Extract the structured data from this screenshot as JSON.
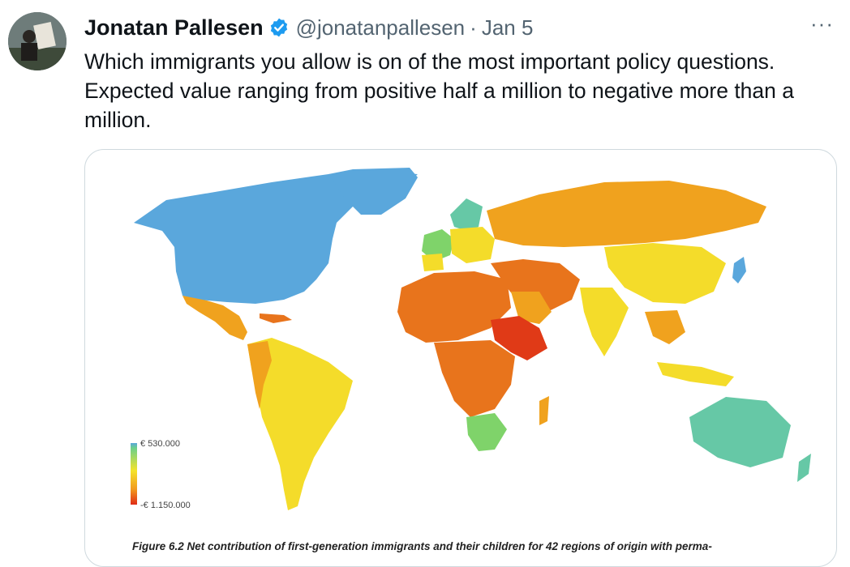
{
  "tweet": {
    "author_name": "Jonatan Pallesen",
    "handle": "@jonatanpallesen",
    "separator": "·",
    "date": "Jan 5",
    "more_label": "···",
    "text": "Which immigrants you allow is on of the most important policy questions. Expected value ranging from positive half a million to negative more than a million."
  },
  "media": {
    "legend": {
      "max_label": "€ 530.000",
      "min_label": "-€ 1.150.000"
    },
    "caption": "Figure 6.2 Net contribution of first-generation immigrants and their children for 42 regions of origin with perma-"
  },
  "colors": {
    "blue": "#5aa7dc",
    "teal": "#66c8a6",
    "green": "#7fd36a",
    "yellow": "#f4dc2a",
    "orange": "#f0a21e",
    "dark_orange": "#e8741c",
    "red": "#e03a17",
    "verified": "#1d9bf0"
  }
}
